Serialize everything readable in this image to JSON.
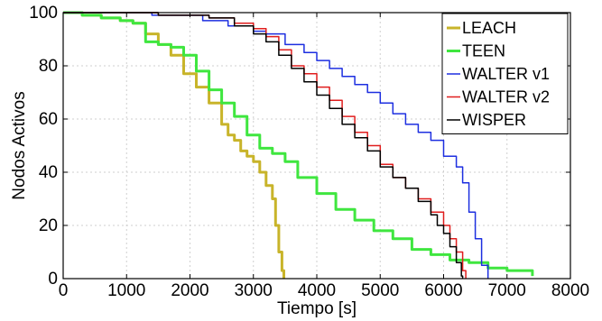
{
  "chart_data": {
    "type": "line",
    "xlabel": "Tiempo [s]",
    "ylabel": "Nodos Activos",
    "xlim": [
      0,
      8000
    ],
    "ylim": [
      0,
      100
    ],
    "xticks": [
      "0",
      "1000",
      "2000",
      "3000",
      "4000",
      "5000",
      "6000",
      "7000",
      "8000"
    ],
    "yticks": [
      "0",
      "20",
      "40",
      "60",
      "80",
      "100"
    ],
    "grid": true,
    "legend": "top-right",
    "series": [
      {
        "name": "LEACH",
        "color": "#c8b42a",
        "x": [
          0,
          300,
          600,
          900,
          1100,
          1300,
          1500,
          1700,
          1900,
          2100,
          2300,
          2500,
          2600,
          2700,
          2800,
          2900,
          3000,
          3100,
          3200,
          3300,
          3350,
          3400,
          3450,
          3480
        ],
        "y": [
          100,
          99,
          98,
          97,
          96,
          92,
          88,
          84,
          77,
          72,
          66,
          58,
          54,
          52,
          48,
          46,
          44,
          40,
          35,
          30,
          20,
          10,
          3,
          0
        ]
      },
      {
        "name": "TEEN",
        "color": "#3fe63f",
        "x": [
          0,
          300,
          600,
          900,
          1100,
          1300,
          1500,
          1700,
          1900,
          2100,
          2300,
          2500,
          2700,
          2900,
          3100,
          3300,
          3500,
          3700,
          4000,
          4300,
          4600,
          4900,
          5200,
          5500,
          5800,
          6100,
          6400,
          6700,
          7000,
          7400
        ],
        "y": [
          100,
          99,
          98,
          97,
          96,
          89,
          88,
          87,
          84,
          78,
          71,
          66,
          61,
          54,
          49,
          47,
          44,
          38,
          32,
          26,
          22,
          18,
          15,
          11,
          9,
          7,
          6,
          4,
          3,
          1
        ]
      },
      {
        "name": "WALTER v1",
        "color": "#1d2fe0",
        "x": [
          0,
          600,
          1000,
          1400,
          1800,
          2200,
          2600,
          3000,
          3200,
          3500,
          3800,
          4000,
          4200,
          4400,
          4600,
          4800,
          5000,
          5200,
          5400,
          5600,
          5800,
          6000,
          6200,
          6300,
          6400,
          6500,
          6600,
          6700
        ],
        "y": [
          100,
          100,
          100,
          99,
          99,
          97,
          95,
          93,
          92,
          88,
          85,
          82,
          79,
          76,
          73,
          70,
          66,
          62,
          58,
          55,
          52,
          46,
          42,
          36,
          25,
          15,
          5,
          0
        ]
      },
      {
        "name": "WALTER v2",
        "color": "#e01e1e",
        "x": [
          0,
          700,
          1100,
          1500,
          1900,
          2300,
          2700,
          3000,
          3200,
          3400,
          3600,
          3800,
          4000,
          4200,
          4400,
          4600,
          4800,
          5000,
          5200,
          5400,
          5600,
          5800,
          6000,
          6100,
          6200,
          6300,
          6350
        ],
        "y": [
          100,
          100,
          100,
          99,
          99,
          98,
          96,
          94,
          91,
          86,
          80,
          77,
          72,
          67,
          61,
          55,
          50,
          43,
          38,
          34,
          30,
          25,
          20,
          15,
          10,
          3,
          0
        ]
      },
      {
        "name": "WISPER",
        "color": "#000000",
        "x": [
          0,
          700,
          1100,
          1500,
          1900,
          2300,
          2700,
          3000,
          3200,
          3400,
          3600,
          3800,
          4000,
          4200,
          4400,
          4600,
          4800,
          5000,
          5200,
          5400,
          5600,
          5800,
          5900,
          6000,
          6100,
          6200,
          6280,
          6300
        ],
        "y": [
          100,
          100,
          100,
          99,
          99,
          98,
          95,
          92,
          89,
          84,
          79,
          74,
          69,
          64,
          58,
          53,
          48,
          42,
          38,
          34,
          29,
          24,
          20,
          17,
          12,
          6,
          1,
          0
        ]
      }
    ]
  }
}
